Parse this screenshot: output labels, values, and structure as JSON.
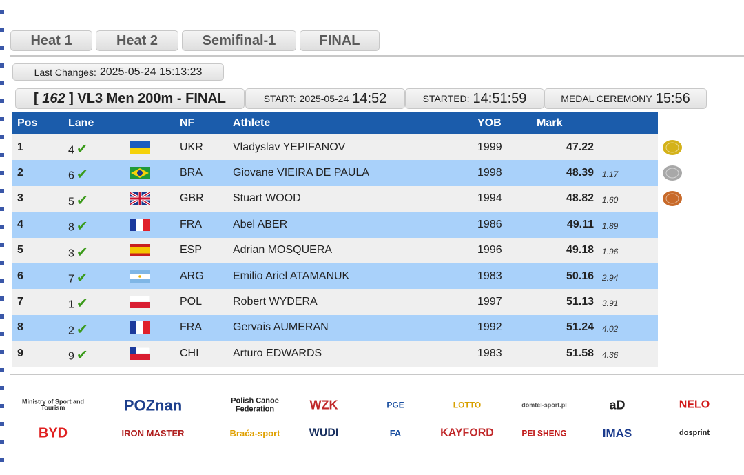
{
  "tabs": [
    "Heat 1",
    "Heat 2",
    "Semifinal-1",
    "FINAL"
  ],
  "last_changes": {
    "label": "Last Changes:",
    "value": "2025-05-24 15:13:23"
  },
  "event": {
    "open": "[",
    "number": "162",
    "close": "]",
    "title": "VL3 Men 200m - FINAL"
  },
  "start": {
    "label": "START:",
    "date": "2025-05-24",
    "time": "14:52"
  },
  "started": {
    "label": "STARTED:",
    "time": "14:51:59"
  },
  "medal_ceremony": {
    "label": "MEDAL CEREMONY",
    "time": "15:56"
  },
  "table": {
    "columns": [
      "Pos",
      "Lane",
      "NF",
      "Athlete",
      "YOB",
      "Mark"
    ],
    "rows": [
      {
        "pos": "1",
        "lane": "4",
        "nf": "UKR",
        "athlete": "Vladyslav YEPIFANOV",
        "yob": "1999",
        "mark": "47.22",
        "diff": null
      },
      {
        "pos": "2",
        "lane": "6",
        "nf": "BRA",
        "athlete": "Giovane VIEIRA DE PAULA",
        "yob": "1998",
        "mark": "48.39",
        "diff": "1.17"
      },
      {
        "pos": "3",
        "lane": "5",
        "nf": "GBR",
        "athlete": "Stuart WOOD",
        "yob": "1994",
        "mark": "48.82",
        "diff": "1.60"
      },
      {
        "pos": "4",
        "lane": "8",
        "nf": "FRA",
        "athlete": "Abel ABER",
        "yob": "1986",
        "mark": "49.11",
        "diff": "1.89"
      },
      {
        "pos": "5",
        "lane": "3",
        "nf": "ESP",
        "athlete": "Adrian MOSQUERA",
        "yob": "1996",
        "mark": "49.18",
        "diff": "1.96"
      },
      {
        "pos": "6",
        "lane": "7",
        "nf": "ARG",
        "athlete": "Emilio Ariel ATAMANUK",
        "yob": "1983",
        "mark": "50.16",
        "diff": "2.94"
      },
      {
        "pos": "7",
        "lane": "1",
        "nf": "POL",
        "athlete": "Robert WYDERA",
        "yob": "1997",
        "mark": "51.13",
        "diff": "3.91"
      },
      {
        "pos": "8",
        "lane": "2",
        "nf": "FRA",
        "athlete": "Gervais AUMERAN",
        "yob": "1992",
        "mark": "51.24",
        "diff": "4.02"
      },
      {
        "pos": "9",
        "lane": "9",
        "nf": "CHI",
        "athlete": "Arturo EDWARDS",
        "yob": "1983",
        "mark": "51.58",
        "diff": "4.36"
      }
    ]
  },
  "sponsors": [
    [
      "Ministry of Sport and Tourism",
      "POZnan",
      "Polish Canoe Federation",
      "WZK",
      "PGE",
      "LOTTO",
      "domtel-sport.pl",
      "aD",
      "NELO"
    ],
    [
      "BYD",
      "IRON MASTER",
      "Braća-sport",
      "WUDI",
      "FA",
      "KAYFORD",
      "PEI SHENG",
      "IMAS",
      "dosprint"
    ]
  ]
}
